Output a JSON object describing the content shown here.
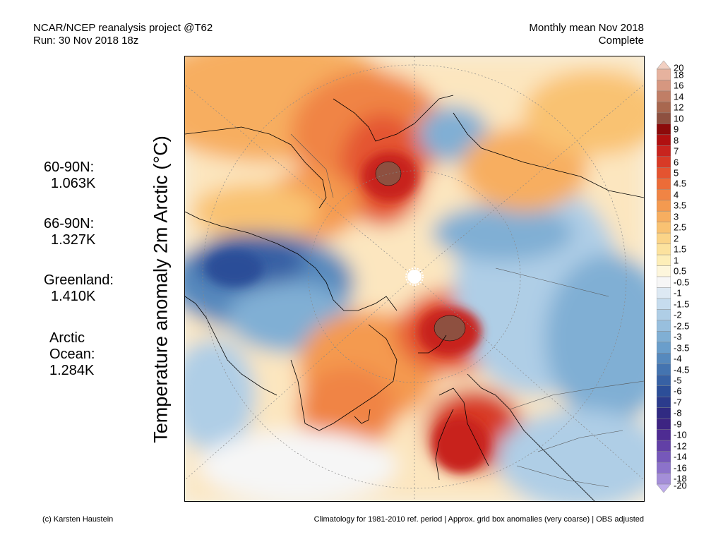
{
  "header": {
    "left_line1": "NCAR/NCEP reanalysis project @T62",
    "left_line2": "Run: 30 Nov 2018 18z",
    "right_line1": "Monthly mean Nov 2018",
    "right_line2": "Complete"
  },
  "stats": [
    {
      "label": "60-90N:",
      "value": "1.063K"
    },
    {
      "label": "66-90N:",
      "value": "1.327K"
    },
    {
      "label": "Greenland:",
      "value": "1.410K"
    },
    {
      "label": "Arctic Ocean:",
      "value": "1.284K"
    }
  ],
  "y_axis_label": "Temperature anomaly 2m Arctic (°C)",
  "colorbar": {
    "levels": [
      "20",
      "18",
      "16",
      "14",
      "12",
      "10",
      "9",
      "8",
      "7",
      "6",
      "5",
      "4.5",
      "4",
      "3.5",
      "3",
      "2.5",
      "2",
      "1.5",
      "1",
      "0.5",
      "-0.5",
      "-1",
      "-1.5",
      "-2",
      "-2.5",
      "-3",
      "-3.5",
      "-4",
      "-4.5",
      "-5",
      "-6",
      "-7",
      "-8",
      "-9",
      "-10",
      "-12",
      "-14",
      "-16",
      "-18",
      "-20"
    ],
    "colors": [
      "#f2d0c2",
      "#e6b29e",
      "#d69780",
      "#c07e66",
      "#a8674f",
      "#8e5040",
      "#8c0a0a",
      "#b01010",
      "#c8241e",
      "#d83a26",
      "#e45430",
      "#ec6c38",
      "#f08444",
      "#f49a50",
      "#f7ae60",
      "#f9c272",
      "#fbd488",
      "#fce29e",
      "#fdeeb8",
      "#fdf6dc",
      "#f6f6f6",
      "#dde9f3",
      "#c6dcee",
      "#afcee6",
      "#98bfde",
      "#80afd4",
      "#6a9ecb",
      "#5689bd",
      "#4474b0",
      "#3761a4",
      "#2c4e98",
      "#2b3b8c",
      "#302a82",
      "#3d2482",
      "#4e2c92",
      "#6240a6",
      "#7658ba",
      "#8c72ca",
      "#a48ed8",
      "#beacea"
    ]
  },
  "map_features": {
    "warm_colors": [
      "#fdeeb8",
      "#fbd488",
      "#f7ae60",
      "#f08444",
      "#e45430",
      "#c8241e",
      "#8e5040"
    ],
    "cool_colors": [
      "#dde9f3",
      "#afcee6",
      "#80afd4",
      "#5689bd",
      "#3761a4"
    ],
    "land_outline_color": "#000000"
  },
  "footer": {
    "left": "(c) Karsten Haustein",
    "right": "Climatology for 1981-2010 ref. period | Approx. grid box anomalies (very coarse) | OBS adjusted"
  }
}
